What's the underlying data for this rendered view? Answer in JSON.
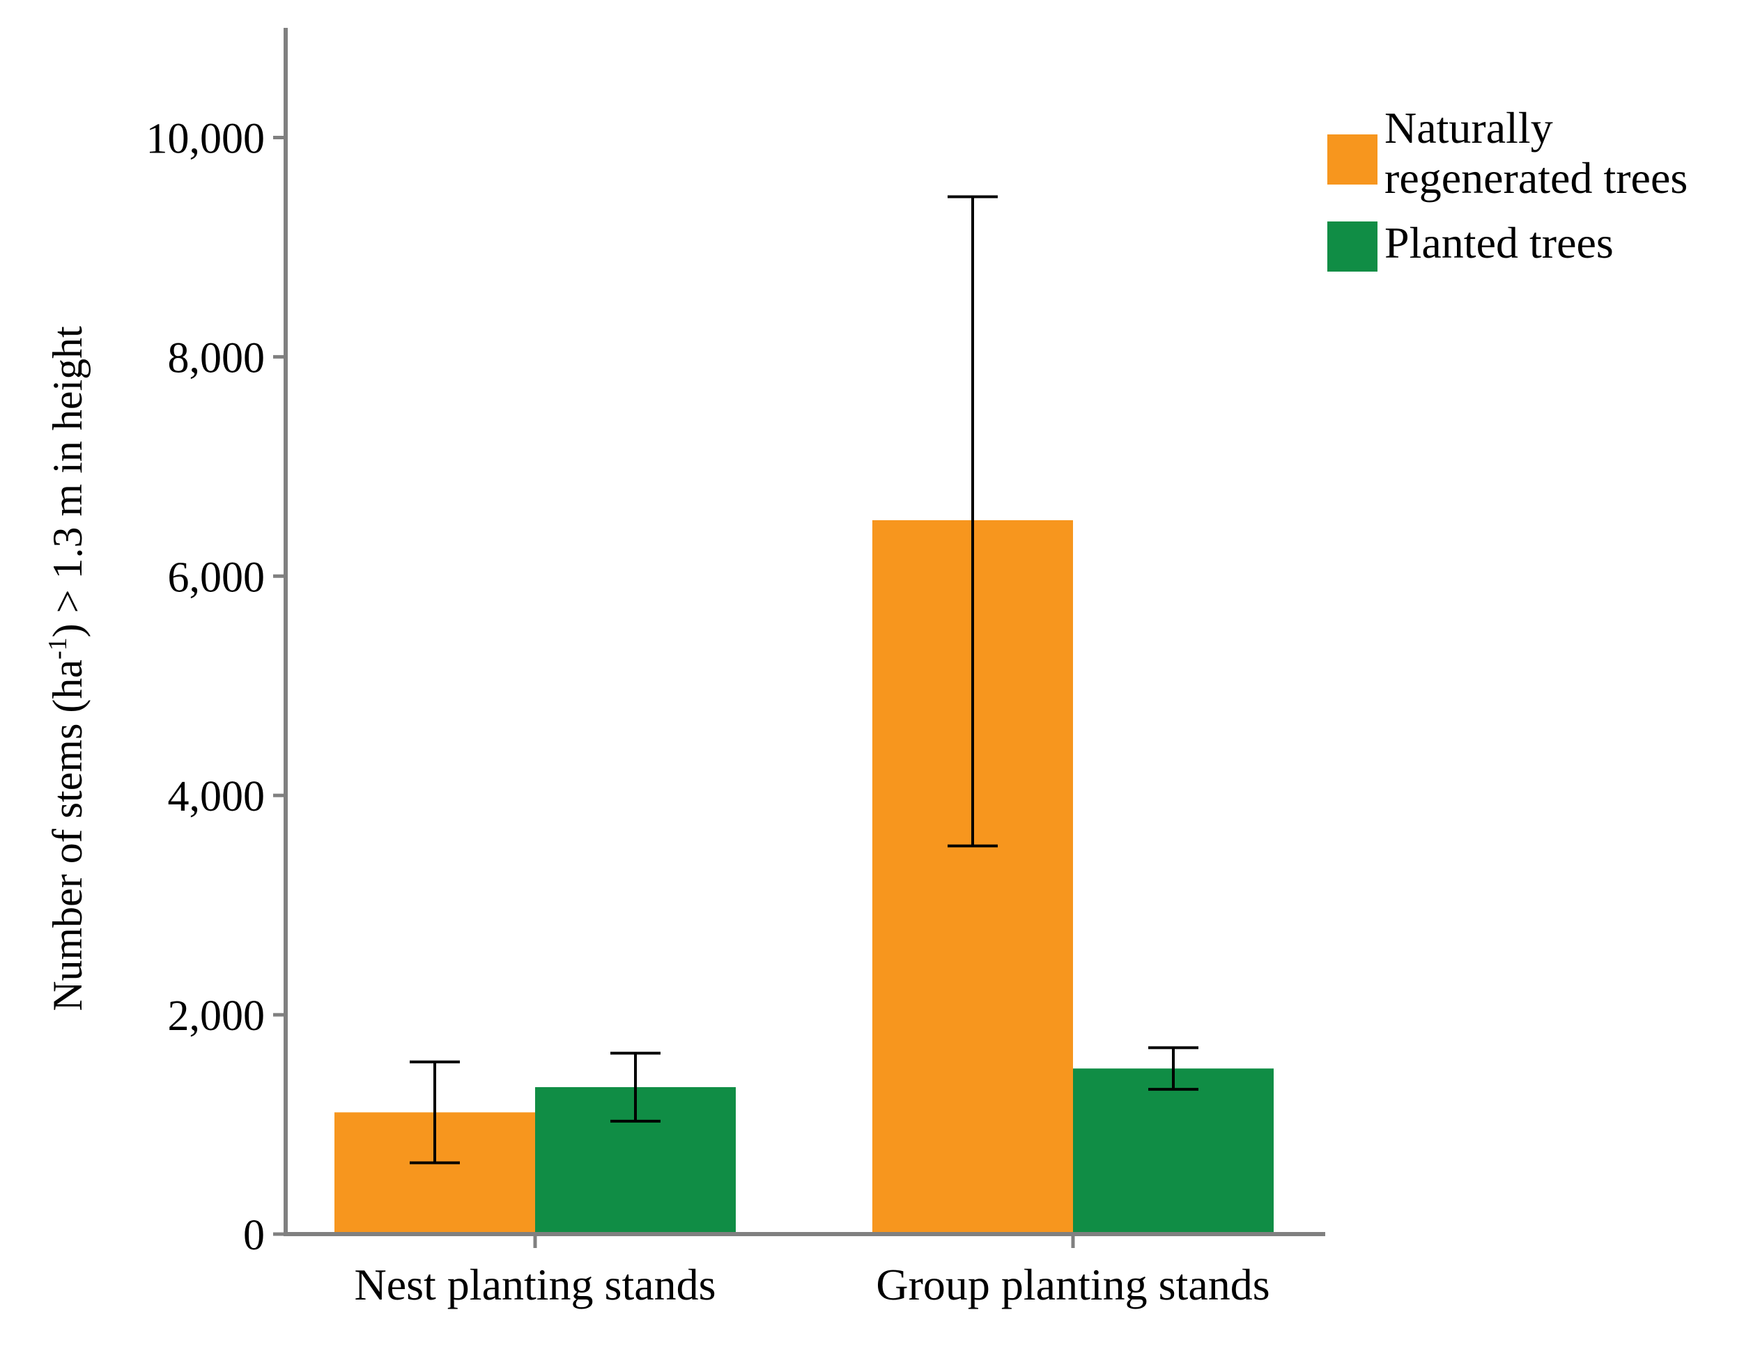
{
  "chart_data": {
    "type": "bar",
    "title": "",
    "xlabel": "",
    "ylabel": {
      "prefix": "Number of stems (ha",
      "superscript": "-1",
      "suffix": ") > 1.3 m in height"
    },
    "ylim": [
      0,
      11000
    ],
    "yticks": [
      0,
      2000,
      4000,
      6000,
      8000,
      10000
    ],
    "ytick_labels": [
      "0",
      "2,000",
      "4,000",
      "6,000",
      "8,000",
      "10,000"
    ],
    "categories": [
      "Nest planting stands",
      "Group planting stands"
    ],
    "series": [
      {
        "name": "Naturally regenerated trees",
        "legend_lines": [
          "Naturally",
          "regenerated trees"
        ],
        "color": "#F7961E",
        "values": [
          1110,
          6510
        ],
        "error_low": [
          650,
          3540
        ],
        "error_high": [
          1570,
          9460
        ]
      },
      {
        "name": "Planted trees",
        "legend_lines": [
          "Planted trees"
        ],
        "color": "#108D45",
        "values": [
          1340,
          1510
        ],
        "error_low": [
          1030,
          1320
        ],
        "error_high": [
          1650,
          1700
        ]
      }
    ],
    "legend_position": "top-right",
    "grid": false
  }
}
